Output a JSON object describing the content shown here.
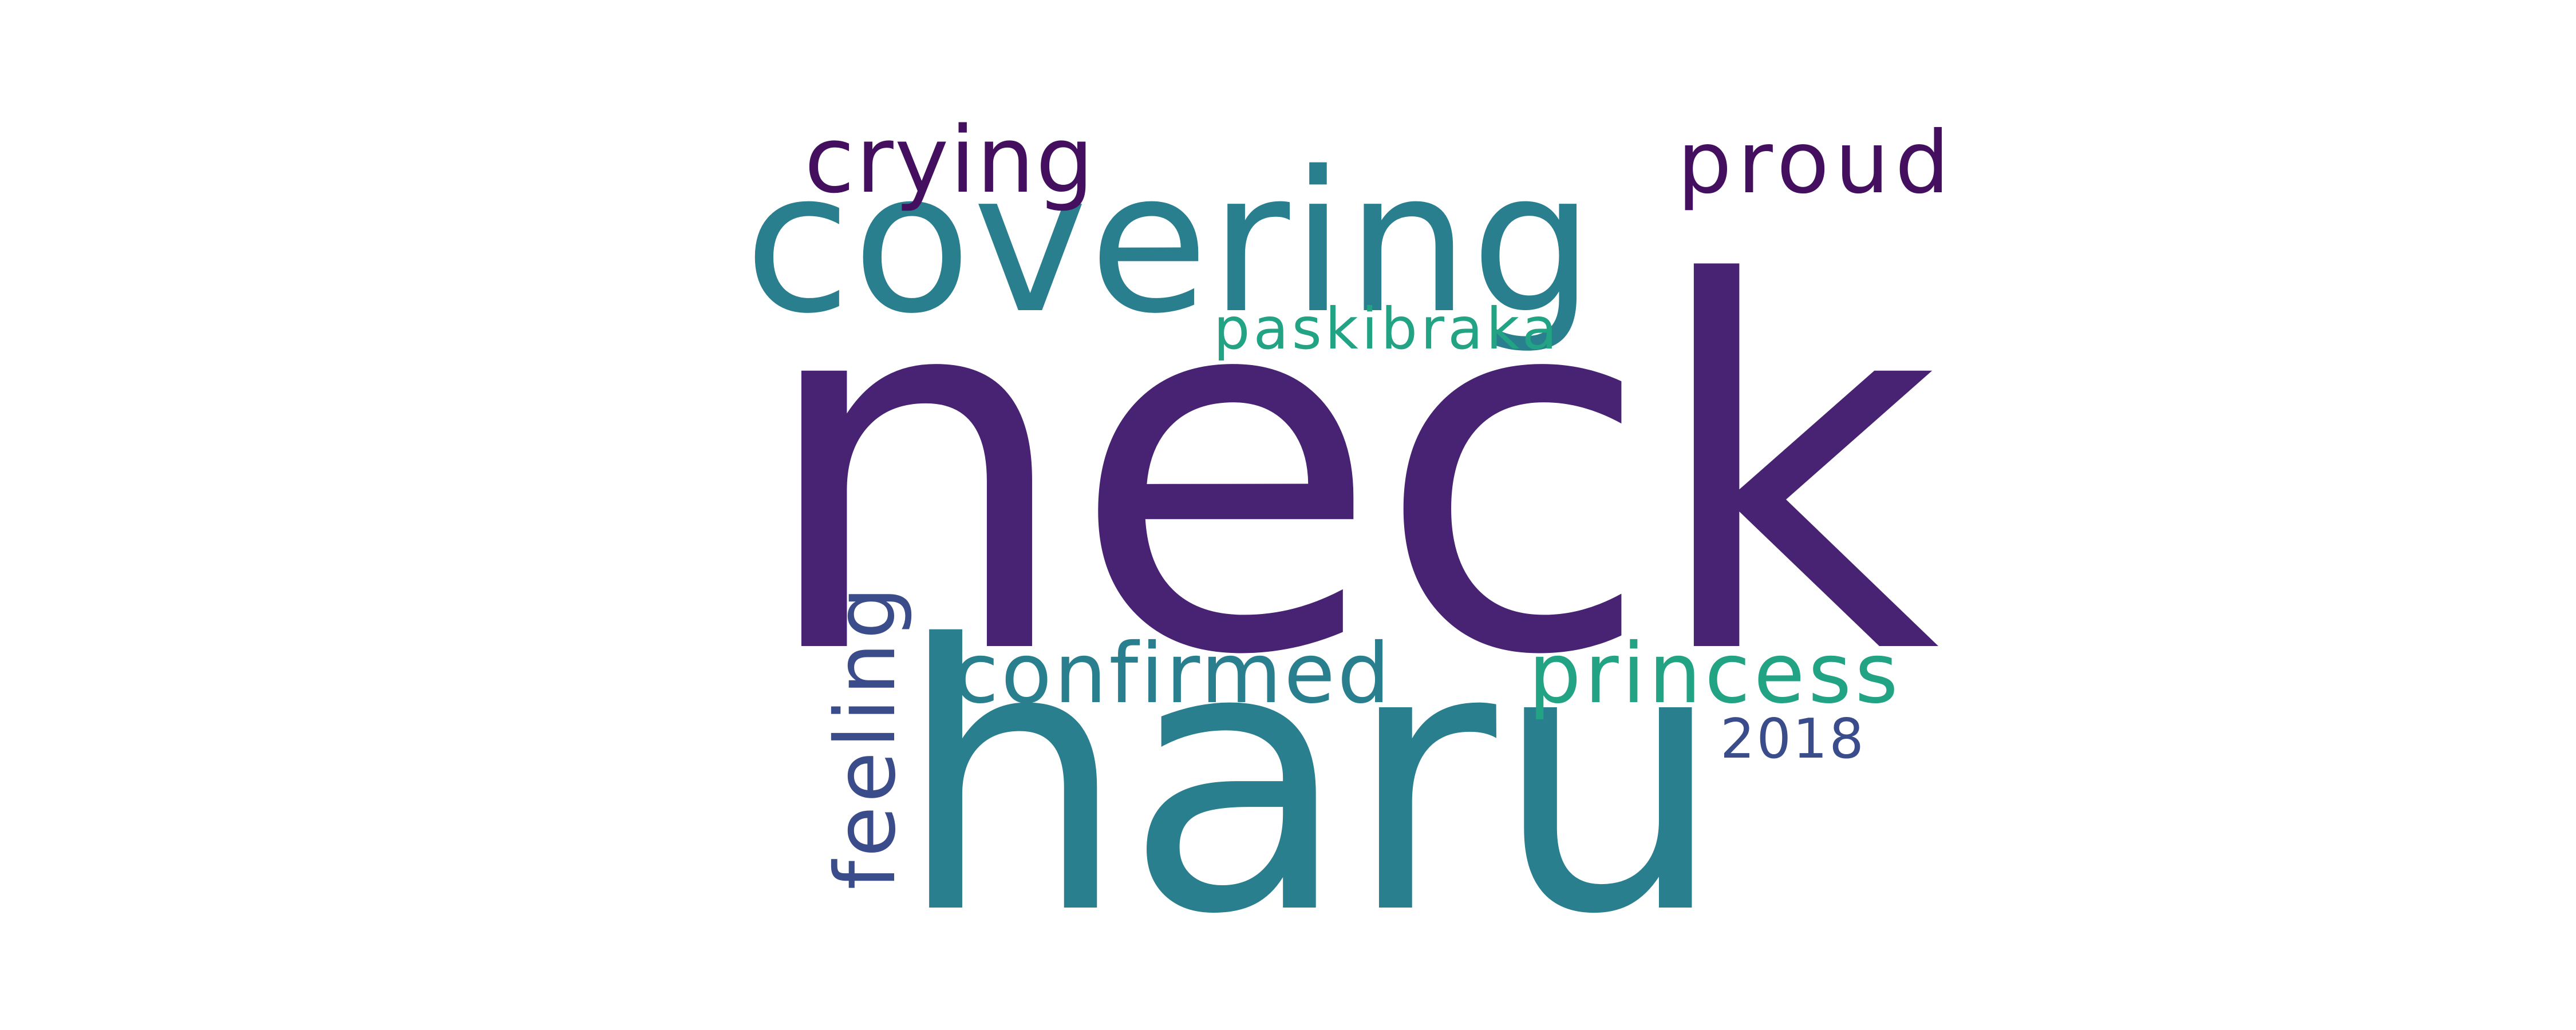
{
  "wordcloud": {
    "colors": {
      "background": "#ffffff",
      "dark_purple": "#482374",
      "deep_purple": "#440f5e",
      "teal": "#2a7f8e",
      "green": "#22a384",
      "slate": "#3b4c8a"
    },
    "words": {
      "neck": "neck",
      "haru": "haru",
      "covering": "covering",
      "crying": "crying",
      "proud": "proud",
      "paskibraka": "paskibraka",
      "confirmed": "confirmed",
      "princess": "princess",
      "year": "2018",
      "feeling": "feeling"
    }
  }
}
